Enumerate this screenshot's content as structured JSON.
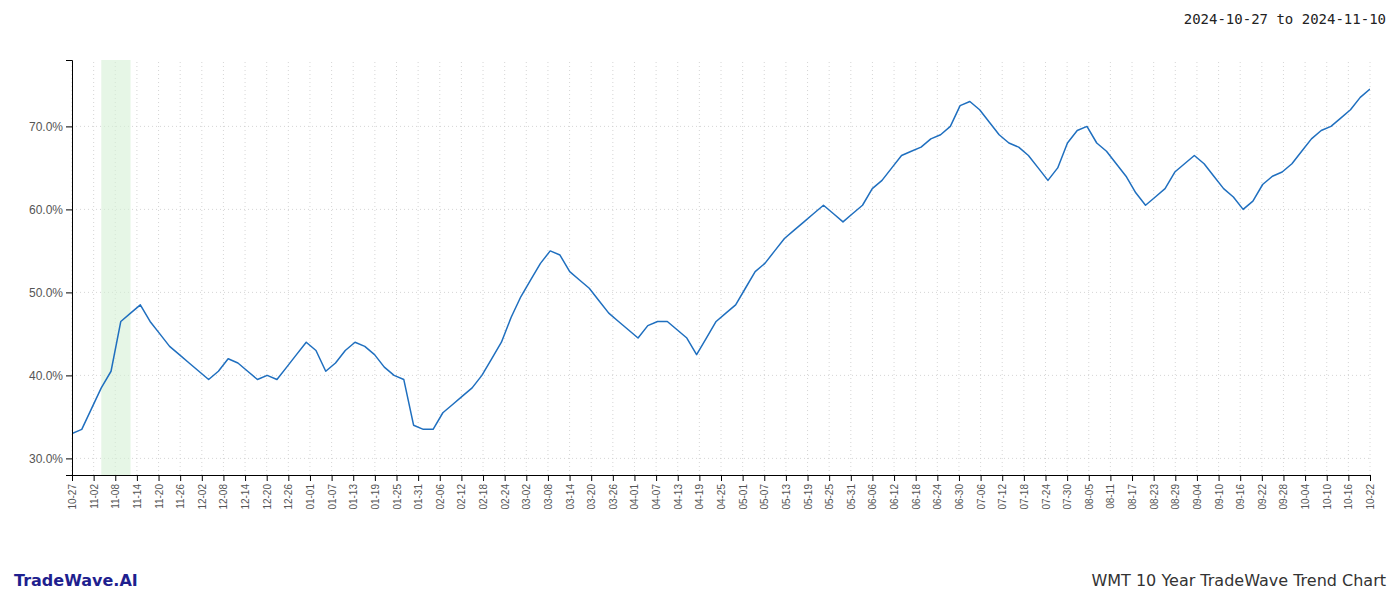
{
  "chart_data": {
    "type": "line",
    "title": "WMT 10 Year TradeWave Trend Chart",
    "subtitle": "2024-10-27 to 2024-11-10",
    "annotations": [
      "TradeWave.AI"
    ],
    "color": "#1f6fbf",
    "highlight": {
      "start": 3,
      "end": 6,
      "color": "#d6f0d6"
    },
    "grid": true,
    "xlim": [
      0,
      133
    ],
    "xticks": [
      {
        "value": 0,
        "label": "10-27"
      },
      {
        "value": 2.216666666666667,
        "label": "11-02"
      },
      {
        "value": 4.433333333333334,
        "label": "11-08"
      },
      {
        "value": 6.65,
        "label": "11-14"
      },
      {
        "value": 8.866666666666667,
        "label": "11-20"
      },
      {
        "value": 11.083333333333334,
        "label": "11-26"
      },
      {
        "value": 13.3,
        "label": "12-02"
      },
      {
        "value": 15.516666666666667,
        "label": "12-08"
      },
      {
        "value": 17.733333333333334,
        "label": "12-14"
      },
      {
        "value": 19.95,
        "label": "12-20"
      },
      {
        "value": 22.166666666666668,
        "label": "12-26"
      },
      {
        "value": 24.383333333333333,
        "label": "01-01"
      },
      {
        "value": 26.6,
        "label": "01-07"
      },
      {
        "value": 28.816666666666666,
        "label": "01-13"
      },
      {
        "value": 31.033333333333335,
        "label": "01-19"
      },
      {
        "value": 33.25,
        "label": "01-25"
      },
      {
        "value": 35.46666666666667,
        "label": "01-31"
      },
      {
        "value": 37.68333333333333,
        "label": "02-06"
      },
      {
        "value": 39.9,
        "label": "02-12"
      },
      {
        "value": 42.11666666666667,
        "label": "02-18"
      },
      {
        "value": 44.333333333333336,
        "label": "02-24"
      },
      {
        "value": 46.55,
        "label": "03-02"
      },
      {
        "value": 48.766666666666666,
        "label": "03-08"
      },
      {
        "value": 50.983333333333334,
        "label": "03-14"
      },
      {
        "value": 53.2,
        "label": "03-20"
      },
      {
        "value": 55.416666666666664,
        "label": "03-26"
      },
      {
        "value": 57.63333333333333,
        "label": "04-01"
      },
      {
        "value": 59.85,
        "label": "04-07"
      },
      {
        "value": 62.06666666666667,
        "label": "04-13"
      },
      {
        "value": 64.28333333333333,
        "label": "04-19"
      },
      {
        "value": 66.5,
        "label": "04-25"
      },
      {
        "value": 68.71666666666667,
        "label": "05-01"
      },
      {
        "value": 70.93333333333334,
        "label": "05-07"
      },
      {
        "value": 73.15,
        "label": "05-13"
      },
      {
        "value": 75.36666666666667,
        "label": "05-19"
      },
      {
        "value": 77.58333333333333,
        "label": "05-25"
      },
      {
        "value": 79.8,
        "label": "05-31"
      },
      {
        "value": 82.01666666666667,
        "label": "06-06"
      },
      {
        "value": 84.23333333333333,
        "label": "06-12"
      },
      {
        "value": 86.45,
        "label": "06-18"
      },
      {
        "value": 88.66666666666667,
        "label": "06-24"
      },
      {
        "value": 90.88333333333334,
        "label": "06-30"
      },
      {
        "value": 93.1,
        "label": "07-06"
      },
      {
        "value": 95.31666666666666,
        "label": "07-12"
      },
      {
        "value": 97.53333333333333,
        "label": "07-18"
      },
      {
        "value": 99.75,
        "label": "07-24"
      },
      {
        "value": 101.96666666666667,
        "label": "07-30"
      },
      {
        "value": 104.18333333333334,
        "label": "08-05"
      },
      {
        "value": 106.4,
        "label": "08-11"
      },
      {
        "value": 108.61666666666666,
        "label": "08-17"
      },
      {
        "value": 110.83333333333333,
        "label": "08-23"
      },
      {
        "value": 113.05,
        "label": "08-29"
      },
      {
        "value": 115.26666666666667,
        "label": "09-04"
      },
      {
        "value": 117.48333333333333,
        "label": "09-10"
      },
      {
        "value": 119.7,
        "label": "09-16"
      },
      {
        "value": 121.91666666666667,
        "label": "09-22"
      },
      {
        "value": 124.13333333333334,
        "label": "09-28"
      },
      {
        "value": 126.35,
        "label": "10-04"
      },
      {
        "value": 128.56666666666666,
        "label": "10-10"
      },
      {
        "value": 130.78333333333333,
        "label": "10-16"
      },
      {
        "value": 133,
        "label": "10-22"
      }
    ],
    "ylim": [
      28,
      78
    ],
    "yticks": [
      {
        "value": 30.0,
        "label": "30.0%"
      },
      {
        "value": 40.0,
        "label": "40.0%"
      },
      {
        "value": 50.0,
        "label": "50.0%"
      },
      {
        "value": 60.0,
        "label": "60.0%"
      },
      {
        "value": 70.0,
        "label": "70.0%"
      }
    ],
    "values": [
      33.0,
      33.5,
      36.0,
      38.5,
      40.5,
      46.5,
      47.5,
      48.5,
      46.5,
      45.0,
      43.5,
      42.5,
      41.5,
      40.5,
      39.5,
      40.5,
      42.0,
      41.5,
      40.5,
      39.5,
      40.0,
      39.5,
      41.0,
      42.5,
      44.0,
      43.0,
      40.5,
      41.5,
      43.0,
      44.0,
      43.5,
      42.5,
      41.0,
      40.0,
      39.5,
      34.0,
      33.5,
      33.5,
      35.5,
      36.5,
      37.5,
      38.5,
      40.0,
      42.0,
      44.0,
      47.0,
      49.5,
      51.5,
      53.5,
      55.0,
      54.5,
      52.5,
      51.5,
      50.5,
      49.0,
      47.5,
      46.5,
      45.5,
      44.5,
      46.0,
      46.5,
      46.5,
      45.5,
      44.5,
      42.5,
      44.5,
      46.5,
      47.5,
      48.5,
      50.5,
      52.5,
      53.5,
      55.0,
      56.5,
      57.5,
      58.5,
      59.5,
      60.5,
      59.5,
      58.5,
      59.5,
      60.5,
      62.5,
      63.5,
      65.0,
      66.5,
      67.0,
      67.5,
      68.5,
      69.0,
      70.0,
      72.5,
      73.0,
      72.0,
      70.5,
      69.0,
      68.0,
      67.5,
      66.5,
      65.0,
      63.5,
      65.0,
      68.0,
      69.5,
      70.0,
      68.0,
      67.0,
      65.5,
      64.0,
      62.0,
      60.5,
      61.5,
      62.5,
      64.5,
      65.5,
      66.5,
      65.5,
      64.0,
      62.5,
      61.5,
      60.0,
      61.0,
      63.0,
      64.0,
      64.5,
      65.5,
      67.0,
      68.5,
      69.5,
      70.0,
      71.0,
      72.0,
      73.5,
      74.5
    ]
  }
}
